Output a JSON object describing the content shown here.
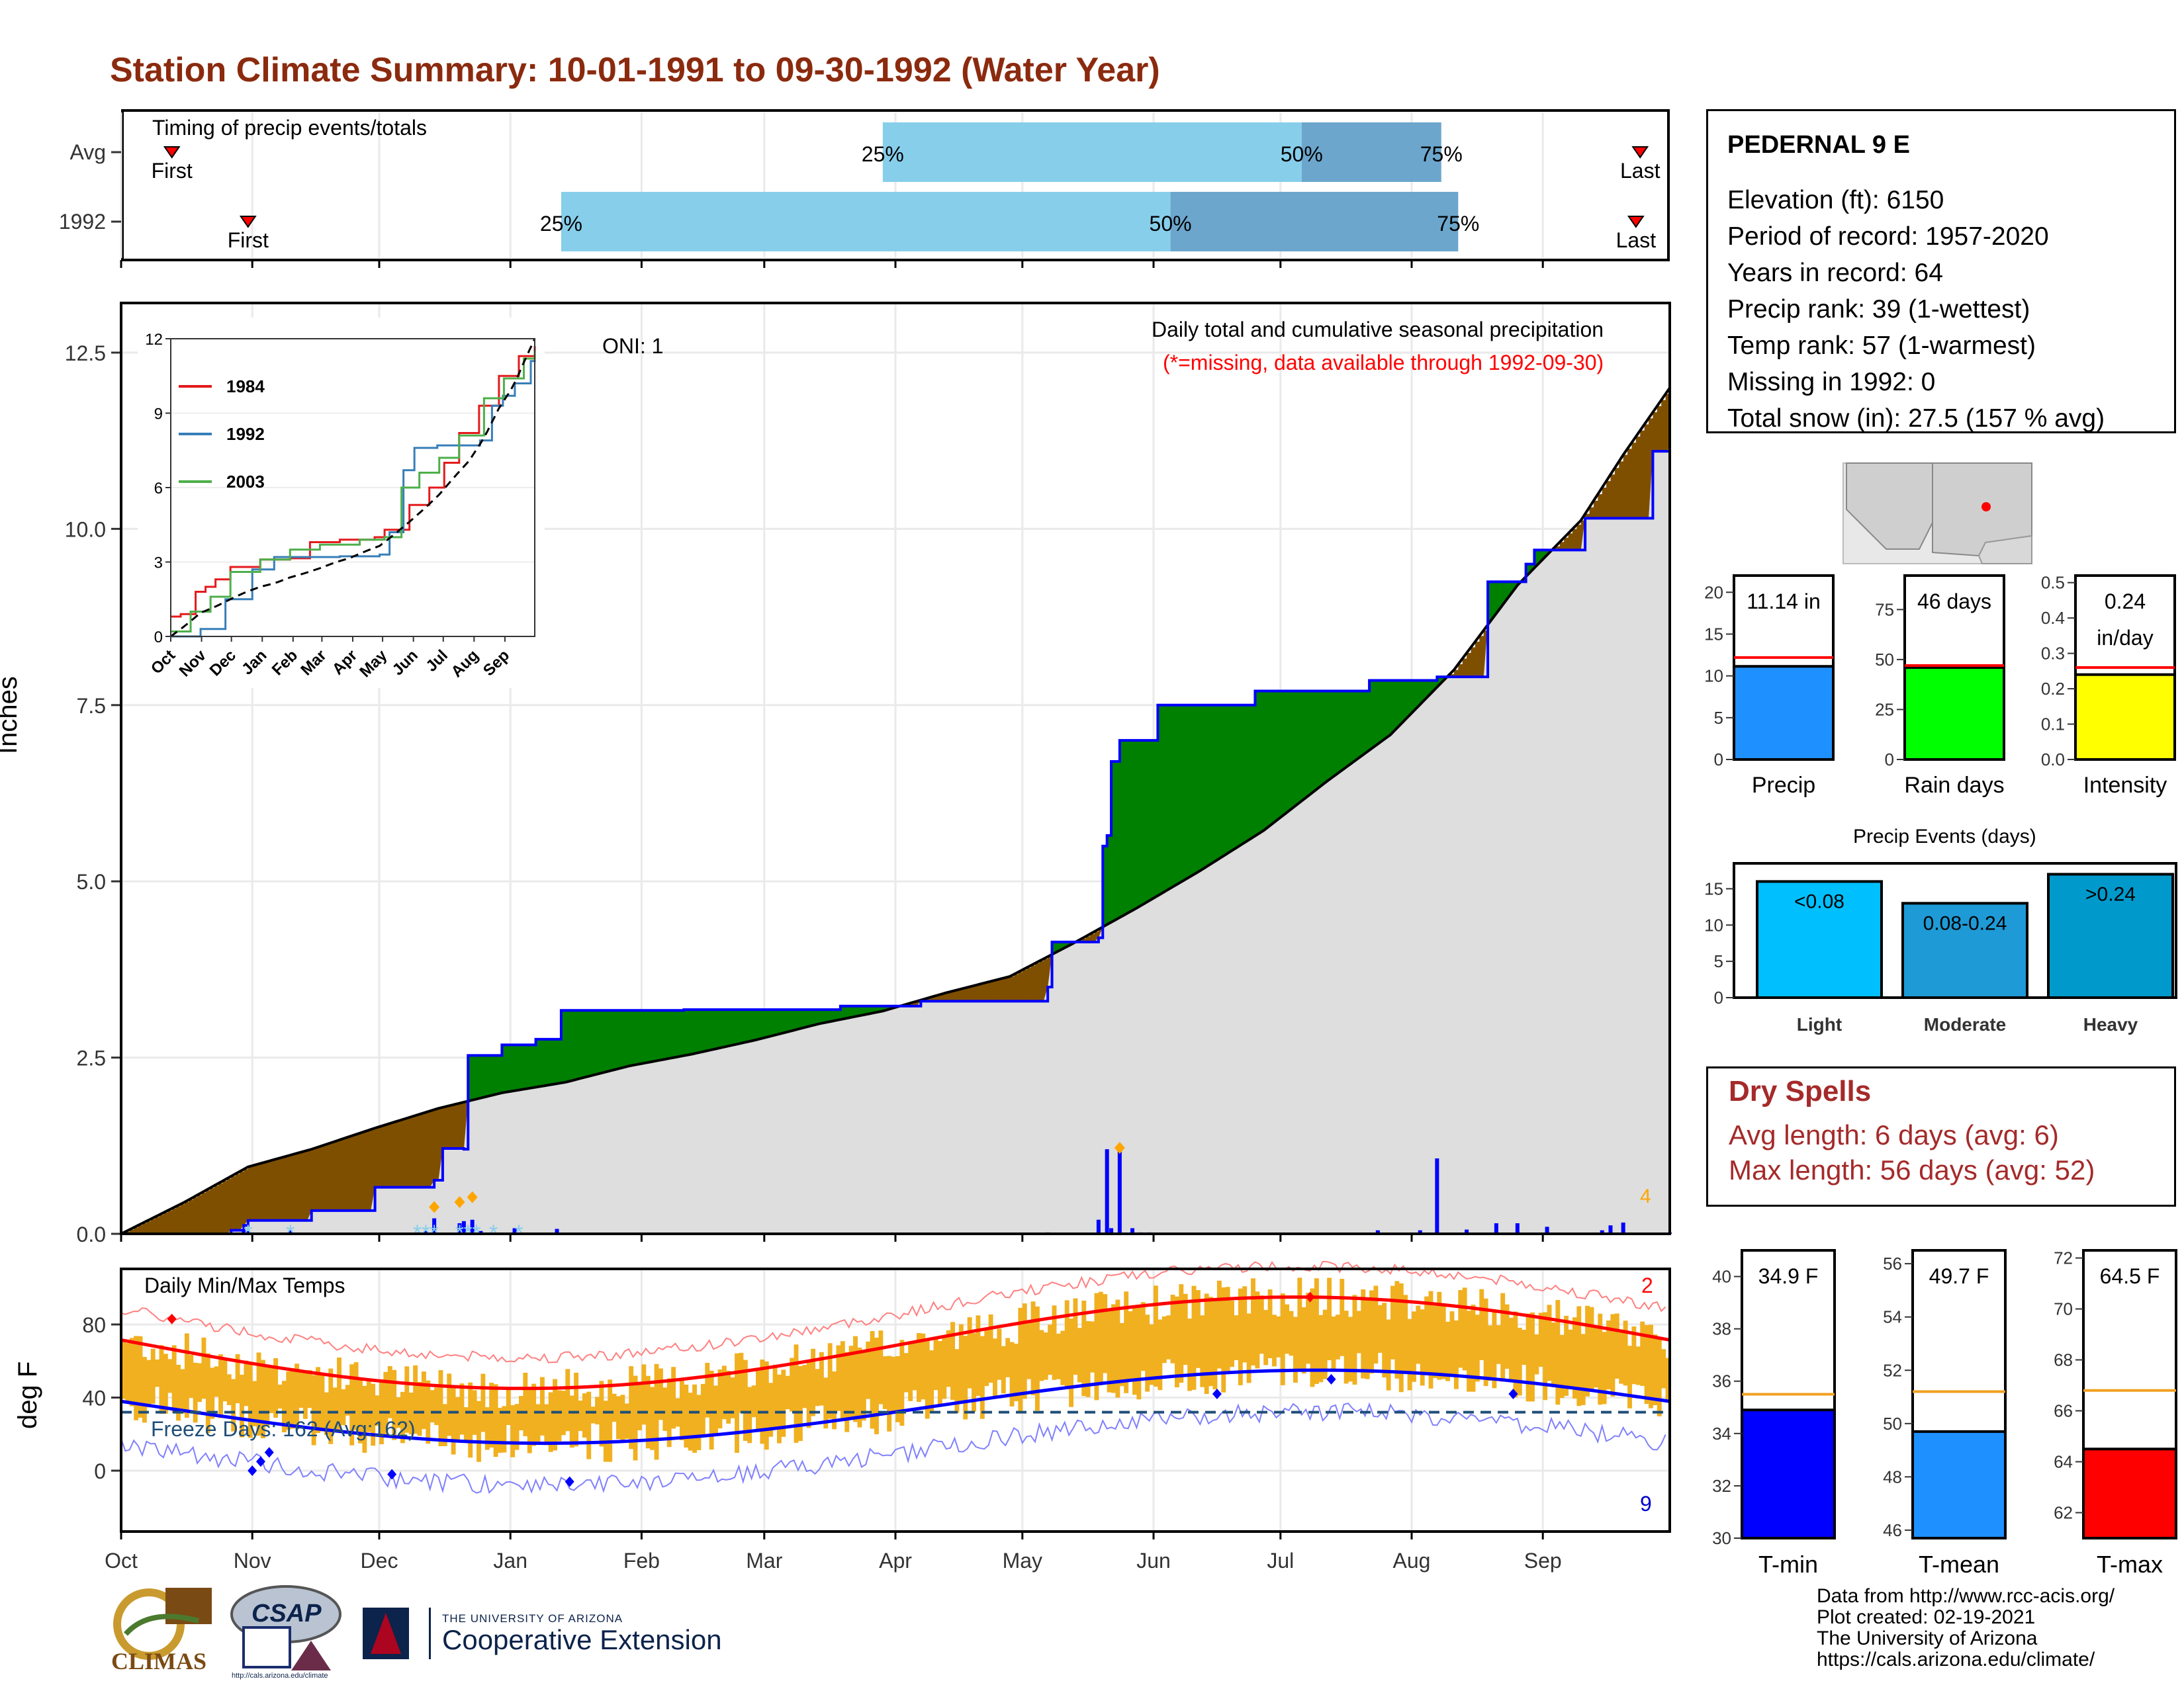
{
  "title": "Station Climate Summary: 10-01-1991 to 09-30-1992 (Water Year)",
  "colors": {
    "title": "#8b2a0e",
    "light_blue": "#87ceeb",
    "mid_blue": "#6ca6cd",
    "brown": "#7f4f00",
    "green": "#008000",
    "grey": "#dedede",
    "blue": "#0000ff",
    "red": "#ff0000",
    "orange": "#f0b020",
    "dry": "#a52a2a"
  },
  "timing": {
    "title": "Timing of precip events/totals",
    "rows": [
      {
        "label": "Avg",
        "first_label": "First",
        "last_label": "Last",
        "p25": "25%",
        "p50": "50%",
        "p75": "75%",
        "first_doy": 12,
        "p25_doy": 180,
        "p50_doy": 279,
        "p75_doy": 312,
        "last_doy": 359
      },
      {
        "label": "1992",
        "first_label": "First",
        "last_label": "Last",
        "p25": "25%",
        "p50": "50%",
        "p75": "75%",
        "first_doy": 30,
        "p25_doy": 104,
        "p50_doy": 248,
        "p75_doy": 316,
        "last_doy": 358
      }
    ]
  },
  "station": {
    "name": "PEDERNAL 9 E",
    "lines": [
      "Elevation (ft): 6150",
      "Period of record: 1957-2020",
      "Years in record: 64",
      "Precip rank: 39 (1-wettest)",
      "Temp rank: 57 (1-warmest)",
      "Missing in 1992: 0",
      "Total snow (in): 27.5 (157 % avg)"
    ]
  },
  "precip_panel": {
    "ylabel": "Inches",
    "yticks": [
      "0.0",
      "2.5",
      "5.0",
      "7.5",
      "10.0",
      "12.5"
    ],
    "annotation": "Daily total and cumulative seasonal precipitation",
    "missing_note": "(*=missing, data available through 1992-09-30)",
    "oni": "ONI: 1",
    "count_label": "4"
  },
  "inset": {
    "yticks": [
      "0",
      "3",
      "6",
      "9",
      "12"
    ],
    "xticks": [
      "Oct",
      "Nov",
      "Dec",
      "Jan",
      "Feb",
      "Mar",
      "Apr",
      "May",
      "Jun",
      "Jul",
      "Aug",
      "Sep"
    ],
    "legend": [
      {
        "name": "1984",
        "color": "#e41a1c"
      },
      {
        "name": "1992",
        "color": "#377eb8"
      },
      {
        "name": "2003",
        "color": "#4daf4a"
      }
    ]
  },
  "temp_panel": {
    "ylabel": "deg F",
    "title": "Daily Min/Max Temps",
    "freeze": "Freeze Days: 162 (Avg:162)",
    "yticks": [
      "0",
      "40",
      "80"
    ],
    "count_hot": "2",
    "count_cold": "9"
  },
  "months": [
    "Oct",
    "Nov",
    "Dec",
    "Jan",
    "Feb",
    "Mar",
    "Apr",
    "May",
    "Jun",
    "Jul",
    "Aug",
    "Sep"
  ],
  "precip_bars": {
    "items": [
      {
        "label": "Precip",
        "top": "11.14 in",
        "value": 11.14,
        "avg": 12.2,
        "color": "#1e90ff",
        "yticks": [
          "0",
          "5",
          "10",
          "15",
          "20"
        ],
        "ymax": 22
      },
      {
        "label": "Rain days",
        "top": "46 days",
        "value": 46,
        "avg": 47,
        "color": "#00ff00",
        "yticks": [
          "0",
          "25",
          "50",
          "75"
        ],
        "ymax": 92
      },
      {
        "label": "Intensity",
        "top": "0.24",
        "top2": "in/day",
        "value": 0.24,
        "avg": 0.26,
        "color": "#ffff00",
        "yticks": [
          "0.0",
          "0.1",
          "0.2",
          "0.3",
          "0.4",
          "0.5"
        ],
        "ymax": 0.52
      }
    ]
  },
  "events": {
    "title": "Precip Events (days)",
    "yticks": [
      "0",
      "5",
      "10",
      "15"
    ],
    "bars": [
      {
        "label": "Light",
        "inner": "<0.08",
        "value": 16,
        "color": "#00bfff"
      },
      {
        "label": "Moderate",
        "inner": "0.08-0.24",
        "value": 13,
        "color": "#1e9ad6"
      },
      {
        "label": "Heavy",
        "inner": ">0.24",
        "value": 17,
        "color": "#0099cc"
      }
    ]
  },
  "dry": {
    "title": "Dry Spells",
    "avg": "Avg length: 6 days (avg: 6)",
    "max": "Max length: 56 days (avg: 52)"
  },
  "temp_bars": {
    "items": [
      {
        "label": "T-min",
        "top": "34.9 F",
        "value": 34.9,
        "avg": 35.5,
        "color": "#0000ff",
        "yticks": [
          "30",
          "32",
          "34",
          "36",
          "38",
          "40"
        ],
        "ymin": 30,
        "ymax": 41
      },
      {
        "label": "T-mean",
        "top": "49.7 F",
        "value": 49.7,
        "avg": 51.2,
        "color": "#1e90ff",
        "yticks": [
          "46",
          "48",
          "50",
          "52",
          "54",
          "56"
        ],
        "ymin": 45.7,
        "ymax": 56.5
      },
      {
        "label": "T-max",
        "top": "64.5 F",
        "value": 64.5,
        "avg": 66.8,
        "color": "#ff0000",
        "yticks": [
          "62",
          "64",
          "66",
          "68",
          "70",
          "72"
        ],
        "ymin": 61,
        "ymax": 72.3
      }
    ]
  },
  "footer": {
    "lines": [
      "Data from http://www.rcc-acis.org/",
      "Plot created: 02-19-2021",
      "The University of Arizona",
      "https://cals.arizona.edu/climate/"
    ],
    "climas": "CLIMAS",
    "csap": "CSAP",
    "csap_url": "http://cals.arizona.edu/climate",
    "ua_small": "THE UNIVERSITY OF ARIZONA",
    "ua_big": "Cooperative Extension"
  },
  "chart_data": {
    "type": "area",
    "title": "Station Climate Summary: 10-01-1991 to 09-30-1992 (Water Year)",
    "ylabel": "Inches",
    "ylim": [
      0,
      13.0
    ],
    "series": [
      {
        "name": "1992 cumulative",
        "points": [
          [
            0,
            0
          ],
          [
            26,
            0.05
          ],
          [
            29,
            0.12
          ],
          [
            30,
            0.19
          ],
          [
            45,
            0.33
          ],
          [
            60,
            0.66
          ],
          [
            74,
            0.76
          ],
          [
            76,
            1.21
          ],
          [
            81,
            1.2
          ],
          [
            82,
            2.53
          ],
          [
            90,
            2.68
          ],
          [
            98,
            2.76
          ],
          [
            104,
            3.17
          ],
          [
            133,
            3.18
          ],
          [
            170,
            3.23
          ],
          [
            189,
            3.3
          ],
          [
            210,
            3.3
          ],
          [
            219,
            3.5
          ],
          [
            220,
            4.14
          ],
          [
            231,
            4.2
          ],
          [
            232,
            5.5
          ],
          [
            233,
            5.65
          ],
          [
            234,
            6.7
          ],
          [
            236,
            7.0
          ],
          [
            245,
            7.5
          ],
          [
            268,
            7.7
          ],
          [
            295,
            7.85
          ],
          [
            311,
            7.9
          ],
          [
            323,
            9.25
          ],
          [
            332,
            9.5
          ],
          [
            334,
            9.7
          ],
          [
            346,
            10.15
          ],
          [
            362,
            11.1
          ],
          [
            366,
            11.14
          ]
        ]
      },
      {
        "name": "Average cumulative",
        "points": [
          [
            0,
            0
          ],
          [
            15,
            0.45
          ],
          [
            30,
            0.95
          ],
          [
            45,
            1.2
          ],
          [
            60,
            1.5
          ],
          [
            75,
            1.78
          ],
          [
            90,
            2.0
          ],
          [
            105,
            2.15
          ],
          [
            120,
            2.38
          ],
          [
            135,
            2.55
          ],
          [
            150,
            2.75
          ],
          [
            165,
            2.98
          ],
          [
            180,
            3.16
          ],
          [
            195,
            3.42
          ],
          [
            210,
            3.65
          ],
          [
            225,
            4.12
          ],
          [
            240,
            4.62
          ],
          [
            255,
            5.15
          ],
          [
            270,
            5.72
          ],
          [
            285,
            6.42
          ],
          [
            300,
            7.08
          ],
          [
            315,
            8.0
          ],
          [
            330,
            9.2
          ],
          [
            345,
            10.12
          ],
          [
            355,
            11.05
          ],
          [
            366,
            12.0
          ]
        ]
      }
    ],
    "daily_precip": [
      [
        29,
        0.05
      ],
      [
        30,
        0.04
      ],
      [
        40,
        0.05
      ],
      [
        70,
        0.02
      ],
      [
        72,
        0.04
      ],
      [
        72,
        0.02
      ],
      [
        74,
        0.22
      ],
      [
        80,
        0.15
      ],
      [
        81,
        0.18
      ],
      [
        83,
        0.2
      ],
      [
        85,
        0.04
      ],
      [
        90,
        0.01
      ],
      [
        93,
        0.08
      ],
      [
        103,
        0.07
      ],
      [
        124,
        0.01
      ],
      [
        219,
        0.02
      ],
      [
        231,
        0.2
      ],
      [
        233,
        1.2
      ],
      [
        234,
        0.08
      ],
      [
        236,
        1.2
      ],
      [
        239,
        0.08
      ],
      [
        241,
        0.02
      ],
      [
        243,
        0.02
      ],
      [
        249,
        0.01
      ],
      [
        270,
        0.01
      ],
      [
        297,
        0.05
      ],
      [
        307,
        0.05
      ],
      [
        311,
        1.07
      ],
      [
        318,
        0.06
      ],
      [
        325,
        0.15
      ],
      [
        330,
        0.15
      ],
      [
        337,
        0.1
      ],
      [
        350,
        0.05
      ],
      [
        352,
        0.12
      ],
      [
        355,
        0.16
      ],
      [
        366,
        0.02
      ]
    ]
  }
}
